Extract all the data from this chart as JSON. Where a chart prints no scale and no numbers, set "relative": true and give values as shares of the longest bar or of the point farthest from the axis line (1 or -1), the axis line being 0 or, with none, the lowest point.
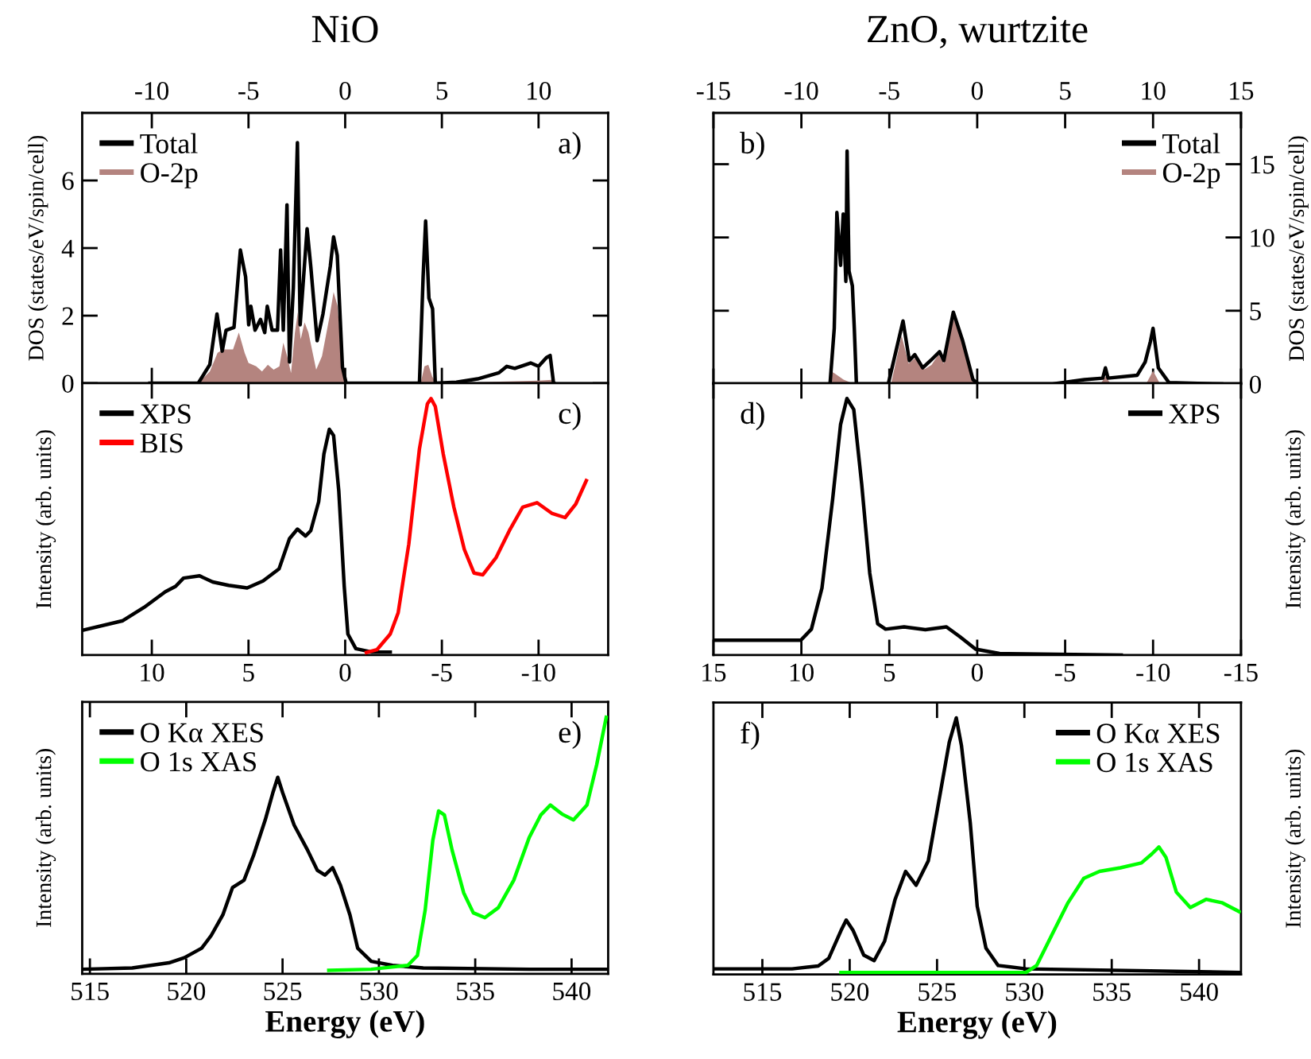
{
  "chart_data": [
    {
      "type": "line",
      "title": "NiO",
      "ylabel": "DOS (states/eV/spin/cell)",
      "xlim": [
        -13.6,
        13.6
      ],
      "xticks": [
        -10,
        -5,
        0,
        5,
        10
      ],
      "ylim": [
        0,
        8
      ],
      "yticks": [
        0,
        2,
        4,
        6
      ],
      "legend": "top left",
      "annotations": [
        "a)"
      ],
      "series": [
        {
          "name": "Total",
          "color": "#000000",
          "type": "line",
          "x": [
            -10.1,
            -7.6,
            -7.0,
            -6.63,
            -6.36,
            -6.16,
            -5.75,
            -5.42,
            -5.15,
            -4.99,
            -4.88,
            -4.66,
            -4.38,
            -4.16,
            -4.03,
            -3.78,
            -3.5,
            -3.34,
            -3.2,
            -3.01,
            -2.88,
            -2.68,
            -2.47,
            -2.33,
            -2.19,
            -1.97,
            -1.78,
            -1.45,
            -1.15,
            -0.77,
            -0.6,
            -0.41,
            -0.14,
            0.05,
            3.84,
            4.03,
            4.16,
            4.33,
            4.52,
            4.66,
            5.75,
            6.85,
            7.95,
            8.36,
            8.77,
            9.59,
            10.0,
            10.41,
            10.6,
            10.77,
            10.82
          ],
          "values": [
            0,
            0,
            0.55,
            2.05,
            0.95,
            1.57,
            1.65,
            3.94,
            3.15,
            1.73,
            2.28,
            1.57,
            1.89,
            1.5,
            2.28,
            1.57,
            1.57,
            3.94,
            1.57,
            5.28,
            0.63,
            2.83,
            7.12,
            1.73,
            2.83,
            4.57,
            3.46,
            1.26,
            2.05,
            3.46,
            4.33,
            3.78,
            0.47,
            0,
            0,
            3.15,
            4.8,
            2.52,
            2.2,
            0,
            0.03,
            0.13,
            0.31,
            0.5,
            0.44,
            0.6,
            0.5,
            0.76,
            0.82,
            0.03,
            0
          ]
        },
        {
          "name": "O-2p",
          "color": "#b4847f",
          "type": "area",
          "x": [
            -7.6,
            -7.0,
            -6.6,
            -6.3,
            -5.8,
            -5.5,
            -5.2,
            -5.0,
            -4.6,
            -4.3,
            -4.0,
            -3.7,
            -3.4,
            -3.2,
            -3.0,
            -2.8,
            -2.6,
            -2.45,
            -2.3,
            -2.1,
            -1.9,
            -1.5,
            -1.2,
            -0.8,
            -0.6,
            -0.4,
            -0.1,
            0.05,
            3.9,
            4.1,
            4.3,
            4.5,
            4.7,
            5.5,
            8.0,
            10.0,
            10.7,
            10.8
          ],
          "values": [
            0,
            0.35,
            0.9,
            1.0,
            1.0,
            1.5,
            0.9,
            0.6,
            0.5,
            0.35,
            0.55,
            0.4,
            0.5,
            1.2,
            0.8,
            0.3,
            1.5,
            2.1,
            1.3,
            1.8,
            1.5,
            0.4,
            0.8,
            2.0,
            2.7,
            2.3,
            0.3,
            0,
            0,
            0.5,
            0.55,
            0.2,
            0,
            0,
            0.05,
            0.08,
            0.1,
            0
          ]
        }
      ]
    },
    {
      "type": "line",
      "title": "ZnO, wurtzite",
      "ylabel": "DOS (states/eV/spin/cell)",
      "xlim": [
        -15,
        15
      ],
      "xticks": [
        -15,
        -10,
        -5,
        0,
        5,
        10,
        15
      ],
      "ylim": [
        0,
        18.5
      ],
      "yticks": [
        0,
        5,
        10,
        15
      ],
      "legend": "top right",
      "annotations": [
        "b)"
      ],
      "series": [
        {
          "name": "Total",
          "color": "#000000",
          "type": "line",
          "x": [
            -8.37,
            -8.13,
            -7.98,
            -7.77,
            -7.62,
            -7.47,
            -7.4,
            -7.29,
            -7.1,
            -6.99,
            -6.87,
            -5.06,
            -4.22,
            -3.86,
            -3.55,
            -3.1,
            -2.65,
            -2.14,
            -1.9,
            -1.36,
            -0.84,
            -0.24,
            0.06,
            4.28,
            6.1,
            7.14,
            7.29,
            7.44,
            9.1,
            9.55,
            9.85,
            10.0,
            10.3,
            10.9,
            13.9
          ],
          "values": [
            0,
            3.8,
            11.7,
            8.1,
            11.6,
            7.0,
            15.9,
            7.7,
            6.7,
            3.8,
            0,
            0,
            4.3,
            1.6,
            2.0,
            1.1,
            1.6,
            2.2,
            1.6,
            4.9,
            3.0,
            0.3,
            0,
            0,
            0.3,
            0.4,
            1.1,
            0.4,
            0.6,
            1.5,
            2.9,
            3.8,
            1.1,
            0.1,
            0
          ]
        },
        {
          "name": "O-2p",
          "color": "#b4847f",
          "type": "area",
          "x": [
            -8.5,
            -8.2,
            -7.6,
            -7.0,
            -4.9,
            -4.3,
            -3.9,
            -3.5,
            -3.0,
            -2.6,
            -2.2,
            -1.9,
            -1.4,
            -0.8,
            -0.2,
            0.1,
            7.0,
            7.3,
            7.6,
            9.6,
            10.0,
            10.4,
            13.5
          ],
          "values": [
            0,
            0.8,
            0.3,
            0,
            0,
            3.3,
            1.4,
            1.8,
            1.0,
            1.3,
            2.0,
            1.4,
            4.6,
            2.8,
            0.2,
            0,
            0,
            0.5,
            0,
            0,
            0.9,
            0,
            0
          ]
        }
      ]
    },
    {
      "type": "line",
      "relative": true,
      "ylabel": "Intensity (arb. units)",
      "xlim": [
        13.6,
        -13.6
      ],
      "xticks": [
        10,
        5,
        0,
        -5,
        -10
      ],
      "legend": "top left",
      "annotations": [
        "c)"
      ],
      "series": [
        {
          "name": "XPS",
          "color": "#000000",
          "x": [
            13.56,
            11.5,
            10.4,
            9.3,
            8.77,
            8.36,
            7.53,
            6.85,
            6.03,
            5.07,
            4.25,
            3.42,
            2.88,
            2.47,
            2.05,
            1.78,
            1.37,
            1.1,
            0.82,
            0.6,
            0.33,
            0.05,
            -0.14,
            -0.55,
            -1.37,
            -2.33
          ],
          "values": [
            0.097,
            0.134,
            0.186,
            0.247,
            0.268,
            0.3,
            0.309,
            0.285,
            0.272,
            0.262,
            0.289,
            0.336,
            0.454,
            0.491,
            0.464,
            0.485,
            0.598,
            0.784,
            0.88,
            0.856,
            0.639,
            0.268,
            0.082,
            0.025,
            0.012,
            0.012
          ]
        },
        {
          "name": "BIS",
          "color": "#ff0000",
          "x": [
            -1.1,
            -1.64,
            -2.33,
            -2.74,
            -3.29,
            -3.84,
            -4.25,
            -4.44,
            -4.66,
            -5.07,
            -5.62,
            -6.16,
            -6.66,
            -7.12,
            -7.81,
            -8.49,
            -9.18,
            -9.92,
            -10.68,
            -11.37,
            -11.92,
            -12.47
          ],
          "values": [
            0.01,
            0.021,
            0.082,
            0.165,
            0.433,
            0.804,
            0.979,
            1.0,
            0.969,
            0.784,
            0.577,
            0.412,
            0.32,
            0.313,
            0.381,
            0.485,
            0.577,
            0.594,
            0.553,
            0.536,
            0.588,
            0.68
          ]
        }
      ]
    },
    {
      "type": "line",
      "relative": true,
      "ylabel": "Intensity (arb. units)",
      "xlim": [
        15,
        -15
      ],
      "xticks": [
        15,
        10,
        5,
        0,
        -5,
        -10,
        -15
      ],
      "legend": "top right",
      "annotations": [
        "d)"
      ],
      "series": [
        {
          "name": "XPS",
          "color": "#000000",
          "x": [
            14.94,
            10.03,
            9.43,
            8.83,
            8.22,
            7.77,
            7.41,
            7.02,
            6.57,
            6.11,
            5.66,
            5.21,
            4.16,
            2.95,
            1.75,
            0.99,
            0.09,
            -1.27,
            -8.19
          ],
          "values": [
            0.058,
            0.058,
            0.101,
            0.261,
            0.609,
            0.899,
            1.0,
            0.957,
            0.667,
            0.319,
            0.122,
            0.101,
            0.11,
            0.099,
            0.11,
            0.072,
            0.023,
            0.006,
            0.0
          ]
        }
      ]
    },
    {
      "type": "line",
      "relative": true,
      "ylabel": "Intensity (arb. units)",
      "xlabel": "Energy (eV)",
      "xlim": [
        514.6,
        541.9
      ],
      "xticks": [
        515,
        520,
        525,
        530,
        535,
        540
      ],
      "legend": "top left",
      "annotations": [
        "e)"
      ],
      "series": [
        {
          "name": "O Kα XES",
          "color": "#000000",
          "x": [
            514.6,
            517.2,
            519.1,
            519.9,
            520.8,
            521.3,
            521.9,
            522.4,
            523.0,
            523.5,
            524.1,
            524.5,
            524.75,
            525.0,
            525.6,
            526.3,
            526.8,
            527.2,
            527.6,
            528.0,
            528.5,
            528.9,
            529.6,
            530.7,
            532.3,
            537.8,
            541.9
          ],
          "values": [
            0.018,
            0.023,
            0.043,
            0.063,
            0.1,
            0.15,
            0.23,
            0.336,
            0.365,
            0.463,
            0.6,
            0.707,
            0.766,
            0.707,
            0.58,
            0.482,
            0.404,
            0.385,
            0.414,
            0.346,
            0.229,
            0.1,
            0.049,
            0.033,
            0.023,
            0.018,
            0.018
          ]
        },
        {
          "name": "O 1s XAS",
          "color": "#00ff00",
          "x": [
            527.4,
            529.6,
            531.5,
            532.0,
            532.4,
            532.8,
            533.1,
            533.4,
            533.8,
            534.4,
            534.9,
            535.5,
            536.2,
            537.0,
            537.8,
            538.4,
            538.9,
            539.5,
            540.1,
            540.8,
            541.3,
            541.8
          ],
          "values": [
            0.014,
            0.018,
            0.033,
            0.072,
            0.248,
            0.521,
            0.635,
            0.619,
            0.482,
            0.316,
            0.238,
            0.219,
            0.258,
            0.365,
            0.531,
            0.619,
            0.658,
            0.623,
            0.6,
            0.658,
            0.814,
            1.0
          ]
        }
      ]
    },
    {
      "type": "line",
      "relative": true,
      "ylabel": "Intensity (arb. units)",
      "xlabel": "Energy (eV)",
      "xlim": [
        512.2,
        542.4
      ],
      "xticks": [
        515,
        520,
        525,
        530,
        535,
        540
      ],
      "legend": "top right",
      "annotations": [
        "f)"
      ],
      "series": [
        {
          "name": "O Kα XES",
          "color": "#000000",
          "x": [
            512.24,
            516.7,
            518.2,
            518.8,
            519.5,
            519.8,
            520.2,
            520.8,
            521.4,
            522.0,
            522.6,
            523.2,
            523.8,
            524.5,
            525.1,
            525.7,
            526.1,
            526.4,
            526.9,
            527.3,
            527.8,
            528.5,
            530.1,
            542.4
          ],
          "values": [
            0.022,
            0.022,
            0.033,
            0.063,
            0.171,
            0.212,
            0.171,
            0.076,
            0.054,
            0.13,
            0.293,
            0.402,
            0.348,
            0.443,
            0.674,
            0.905,
            1.0,
            0.891,
            0.592,
            0.266,
            0.103,
            0.035,
            0.022,
            0.008
          ]
        },
        {
          "name": "O 1s XAS",
          "color": "#00ff00",
          "x": [
            519.5,
            530.1,
            530.7,
            531.6,
            532.5,
            533.4,
            534.3,
            535.5,
            536.7,
            537.3,
            537.7,
            538.1,
            538.7,
            539.5,
            540.4,
            541.3,
            542.3
          ],
          "values": [
            0.008,
            0.008,
            0.035,
            0.158,
            0.28,
            0.375,
            0.402,
            0.416,
            0.435,
            0.47,
            0.497,
            0.457,
            0.321,
            0.261,
            0.293,
            0.28,
            0.245
          ]
        }
      ]
    }
  ]
}
